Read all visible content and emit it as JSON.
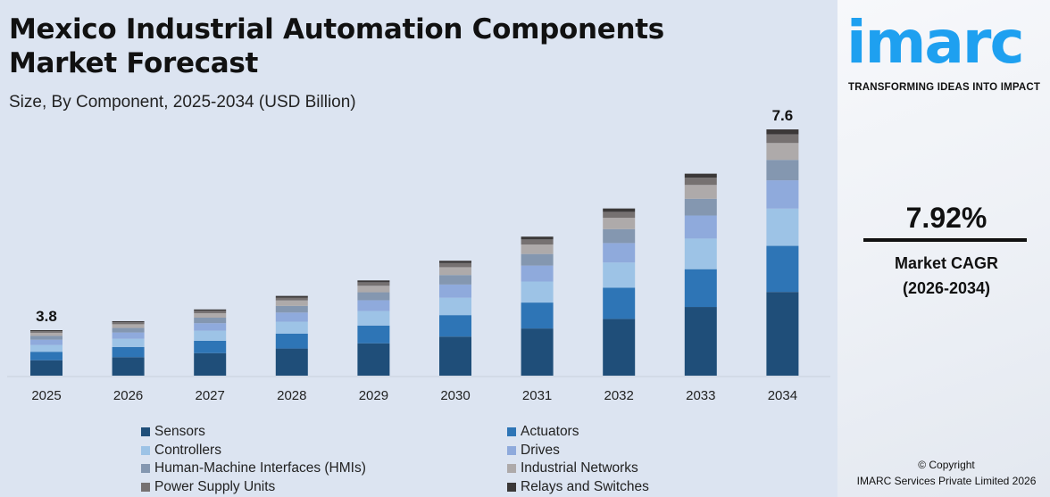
{
  "title_line1": "Mexico Industrial Automation Components",
  "title_line2": "Market Forecast",
  "subtitle": "Size, By Component, 2025-2034 (USD Billion)",
  "brand": {
    "logo": "imarc",
    "tagline": "TRANSFORMING IDEAS INTO IMPACT",
    "color": "#1ea0f0"
  },
  "cagr": {
    "value": "7.92%",
    "label": "Market CAGR",
    "period": "(2026-2034)"
  },
  "copyright": {
    "line1": "© Copyright",
    "line2": "IMARC Services Private Limited 2026"
  },
  "chart_data": {
    "type": "bar",
    "stacked": true,
    "title": "Mexico Industrial Automation Components Market Forecast",
    "subtitle": "Size, By Component, 2025-2034 (USD Billion)",
    "categories": [
      "2025",
      "2026",
      "2027",
      "2028",
      "2029",
      "2030",
      "2031",
      "2032",
      "2033",
      "2034"
    ],
    "totals_labeled": {
      "2025": "3.8",
      "2034": "7.6"
    },
    "grid": false,
    "legend_position": "bottom",
    "series": [
      {
        "name": "Sensors",
        "color": "#1f4e79",
        "values": [
          1.29,
          1.39,
          1.51,
          1.63,
          1.75,
          1.89,
          2.04,
          2.2,
          2.38,
          2.58
        ]
      },
      {
        "name": "Actuators",
        "color": "#2e75b6",
        "values": [
          0.71,
          0.77,
          0.83,
          0.89,
          0.96,
          1.04,
          1.12,
          1.21,
          1.31,
          1.42
        ]
      },
      {
        "name": "Controllers",
        "color": "#9dc3e6",
        "values": [
          0.57,
          0.62,
          0.67,
          0.72,
          0.78,
          0.84,
          0.91,
          0.98,
          1.06,
          1.15
        ]
      },
      {
        "name": "Drives",
        "color": "#8faadc",
        "values": [
          0.44,
          0.47,
          0.51,
          0.55,
          0.59,
          0.64,
          0.69,
          0.75,
          0.8,
          0.87
        ]
      },
      {
        "name": "Human-Machine Interfaces (HMIs)",
        "color": "#8497b0",
        "values": [
          0.32,
          0.34,
          0.37,
          0.4,
          0.43,
          0.46,
          0.5,
          0.54,
          0.58,
          0.63
        ]
      },
      {
        "name": "Industrial Networks",
        "color": "#aeaaaa",
        "values": [
          0.26,
          0.28,
          0.3,
          0.33,
          0.35,
          0.38,
          0.41,
          0.44,
          0.48,
          0.52
        ]
      },
      {
        "name": "Power Supply Units",
        "color": "#767171",
        "values": [
          0.14,
          0.15,
          0.16,
          0.17,
          0.19,
          0.2,
          0.22,
          0.23,
          0.25,
          0.27
        ]
      },
      {
        "name": "Relays and Switches",
        "color": "#3b3838",
        "values": [
          0.08,
          0.08,
          0.09,
          0.1,
          0.1,
          0.11,
          0.12,
          0.13,
          0.14,
          0.15
        ]
      }
    ]
  }
}
